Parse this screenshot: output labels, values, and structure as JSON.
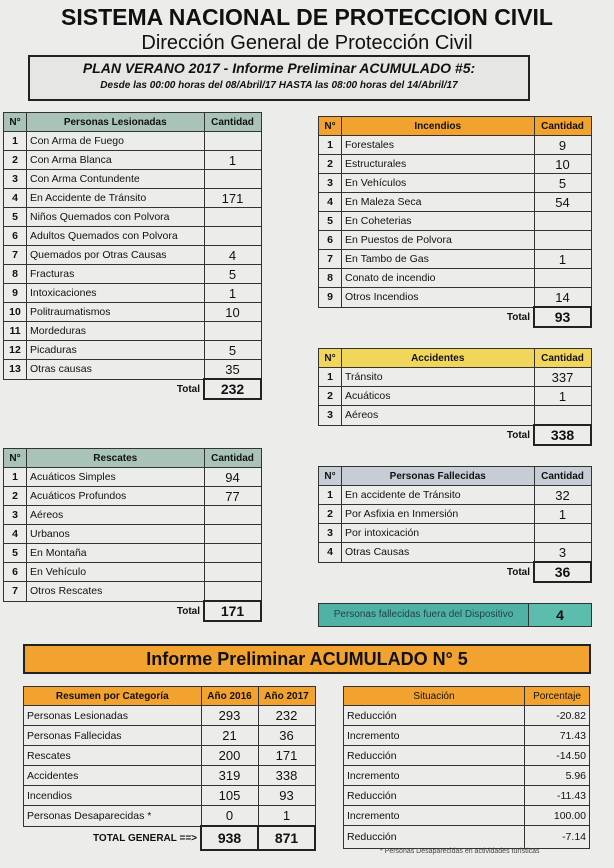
{
  "header": {
    "title": "SISTEMA NACIONAL DE PROTECCION CIVIL",
    "subtitle": "Dirección General de Protección Civil",
    "plan": "PLAN VERANO 2017 - Informe Preliminar ACUMULADO #5:",
    "range": "Desde las 00:00 horas del 08/Abril/17 HASTA las 08:00 horas del 14/Abril/17"
  },
  "colors": {
    "green_header": "#a9c3b6",
    "orange": "#f2a22e",
    "yellow": "#f2d65c",
    "gray_header": "#c6cdd4",
    "teal": "#4fb2a4"
  },
  "tables": {
    "lesionadas": {
      "cols": [
        "N°",
        "Personas Lesionadas",
        "Cantidad"
      ],
      "rows": [
        [
          "1",
          "Con Arma de Fuego",
          ""
        ],
        [
          "2",
          "Con Arma Blanca",
          "1"
        ],
        [
          "3",
          "Con Arma Contundente",
          ""
        ],
        [
          "4",
          "En Accidente de Tránsito",
          "171"
        ],
        [
          "5",
          "Niños Quemados con Polvora",
          ""
        ],
        [
          "6",
          "Adultos Quemados con Polvora",
          ""
        ],
        [
          "7",
          "Quemados por Otras Causas",
          "4"
        ],
        [
          "8",
          "Fracturas",
          "5"
        ],
        [
          "9",
          "Intoxicaciones",
          "1"
        ],
        [
          "10",
          "Politraumatismos",
          "10"
        ],
        [
          "11",
          "Mordeduras",
          ""
        ],
        [
          "12",
          "Picaduras",
          "5"
        ],
        [
          "13",
          "Otras causas",
          "35"
        ]
      ],
      "total_label": "Total",
      "total": "232"
    },
    "incendios": {
      "cols": [
        "N°",
        "Incendios",
        "Cantidad"
      ],
      "rows": [
        [
          "1",
          "Forestales",
          "9"
        ],
        [
          "2",
          "Estructurales",
          "10"
        ],
        [
          "3",
          "En Vehículos",
          "5"
        ],
        [
          "4",
          "En Maleza Seca",
          "54"
        ],
        [
          "5",
          "En Coheterias",
          ""
        ],
        [
          "6",
          "En Puestos de Polvora",
          ""
        ],
        [
          "7",
          "En Tambo de Gas",
          "1"
        ],
        [
          "8",
          "Conato de incendio",
          ""
        ],
        [
          "9",
          "Otros Incendios",
          "14"
        ]
      ],
      "total_label": "Total",
      "total": "93"
    },
    "accidentes": {
      "cols": [
        "N°",
        "Accidentes",
        "Cantidad"
      ],
      "rows": [
        [
          "1",
          "Tránsito",
          "337"
        ],
        [
          "2",
          "Acuáticos",
          "1"
        ],
        [
          "3",
          "Aéreos",
          ""
        ]
      ],
      "total_label": "Total",
      "total": "338"
    },
    "rescates": {
      "cols": [
        "N°",
        "Rescates",
        "Cantidad"
      ],
      "rows": [
        [
          "1",
          "Acuáticos Simples",
          "94"
        ],
        [
          "2",
          "Acuáticos Profundos",
          "77"
        ],
        [
          "3",
          "Aéreos",
          ""
        ],
        [
          "4",
          "Urbanos",
          ""
        ],
        [
          "5",
          "En Montaña",
          ""
        ],
        [
          "6",
          "En Vehículo",
          ""
        ],
        [
          "7",
          "Otros Rescates",
          ""
        ]
      ],
      "total_label": "Total",
      "total": "171"
    },
    "fallecidas": {
      "cols": [
        "N°",
        "Personas Fallecidas",
        "Cantidad"
      ],
      "rows": [
        [
          "1",
          "En accidente de Tránsito",
          "32"
        ],
        [
          "2",
          "Por Asfixia en Inmersión",
          "1"
        ],
        [
          "3",
          "Por intoxicación",
          ""
        ],
        [
          "4",
          "Otras Causas",
          "3"
        ]
      ],
      "total_label": "Total",
      "total": "36"
    }
  },
  "fuera": {
    "label": "Personas fallecidas fuera del Dispositivo",
    "value": "4"
  },
  "banner": "Informe Preliminar ACUMULADO N° 5",
  "resumen": {
    "cols": [
      "Resumen por Categoría",
      "Año 2016",
      "Año 2017"
    ],
    "rows": [
      [
        "Personas Lesionadas",
        "293",
        "232"
      ],
      [
        "Personas Fallecidas",
        "21",
        "36"
      ],
      [
        "Rescates",
        "200",
        "171"
      ],
      [
        "Accidentes",
        "319",
        "338"
      ],
      [
        "Incendios",
        "105",
        "93"
      ],
      [
        "Personas Desaparecidas *",
        "0",
        "1"
      ]
    ],
    "total_label": "TOTAL GENERAL ==>",
    "total_2016": "938",
    "total_2017": "871"
  },
  "situacion": {
    "cols": [
      "Situación",
      "Porcentaje"
    ],
    "rows": [
      [
        "Reducción",
        "-20.82"
      ],
      [
        "Incremento",
        "71.43"
      ],
      [
        "Reducción",
        "-14.50"
      ],
      [
        "Incremento",
        "5.96"
      ],
      [
        "Reducción",
        "-11.43"
      ],
      [
        "Incremento",
        "100.00"
      ],
      [
        "Reducción",
        "-7.14"
      ]
    ]
  },
  "note": "* Personas Desaparecidas en actividades turísticas"
}
